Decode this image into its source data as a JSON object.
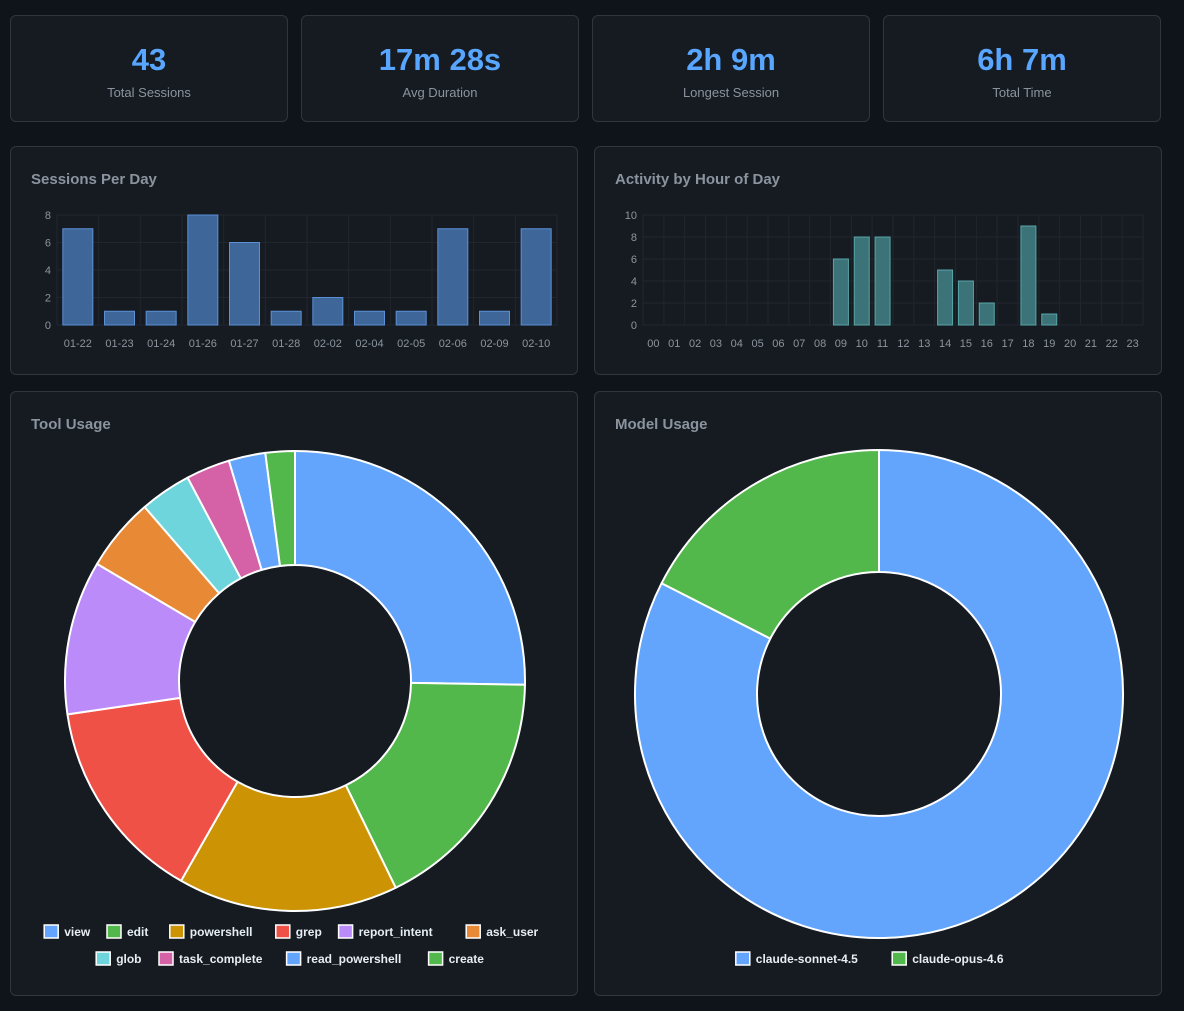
{
  "stats": [
    {
      "value": "43",
      "label": "Total Sessions"
    },
    {
      "value": "17m 28s",
      "label": "Avg Duration"
    },
    {
      "value": "2h 9m",
      "label": "Longest Session"
    },
    {
      "value": "6h 7m",
      "label": "Total Time"
    }
  ],
  "panels": {
    "sessions_title": "Sessions Per Day",
    "hours_title": "Activity by Hour of Day",
    "tools_title": "Tool Usage",
    "models_title": "Model Usage"
  },
  "colors": {
    "bar_sessions": "#3f6699",
    "bar_sessions_border": "#5b8fd6",
    "bar_hours": "#3b7378",
    "bar_hours_border": "#58a6a6",
    "grid": "#21262d"
  },
  "chart_data": [
    {
      "type": "bar",
      "title": "Sessions Per Day",
      "categories": [
        "01-22",
        "01-23",
        "01-24",
        "01-26",
        "01-27",
        "01-28",
        "02-02",
        "02-04",
        "02-05",
        "02-06",
        "02-09",
        "02-10"
      ],
      "values": [
        7,
        1,
        1,
        8,
        6,
        1,
        2,
        1,
        1,
        7,
        1,
        7
      ],
      "ylim": [
        0,
        8
      ],
      "yticks": [
        0,
        2,
        4,
        6,
        8
      ],
      "xlabel": "",
      "ylabel": "",
      "grid": true
    },
    {
      "type": "bar",
      "title": "Activity by Hour of Day",
      "categories": [
        "00",
        "01",
        "02",
        "03",
        "04",
        "05",
        "06",
        "07",
        "08",
        "09",
        "10",
        "11",
        "12",
        "13",
        "14",
        "15",
        "16",
        "17",
        "18",
        "19",
        "20",
        "21",
        "22",
        "23"
      ],
      "values": [
        0,
        0,
        0,
        0,
        0,
        0,
        0,
        0,
        0,
        6,
        8,
        8,
        0,
        0,
        5,
        4,
        2,
        0,
        9,
        1,
        0,
        0,
        0,
        0
      ],
      "ylim": [
        0,
        10
      ],
      "yticks": [
        0,
        2,
        4,
        6,
        8,
        10
      ],
      "xlabel": "",
      "ylabel": "",
      "grid": true
    },
    {
      "type": "pie",
      "title": "Tool Usage",
      "labels": [
        "view",
        "edit",
        "powershell",
        "grep",
        "report_intent",
        "ask_user",
        "glob",
        "task_complete",
        "read_powershell",
        "create"
      ],
      "values": [
        24.5,
        17.0,
        15.0,
        14.0,
        10.5,
        5.0,
        3.5,
        3.0,
        2.5,
        2.0
      ],
      "colors": [
        "#63a5fc",
        "#52b84b",
        "#cc9404",
        "#ef5146",
        "#bb8bfa",
        "#e88a35",
        "#6ed5dd",
        "#d561a6",
        "#63a5fc",
        "#52b84b"
      ],
      "legend": "bottom"
    },
    {
      "type": "pie",
      "title": "Model Usage",
      "labels": [
        "claude-sonnet-4.5",
        "claude-opus-4.6"
      ],
      "values": [
        82.5,
        17.5
      ],
      "colors": [
        "#63a5fc",
        "#52b84b"
      ],
      "legend": "bottom"
    }
  ]
}
